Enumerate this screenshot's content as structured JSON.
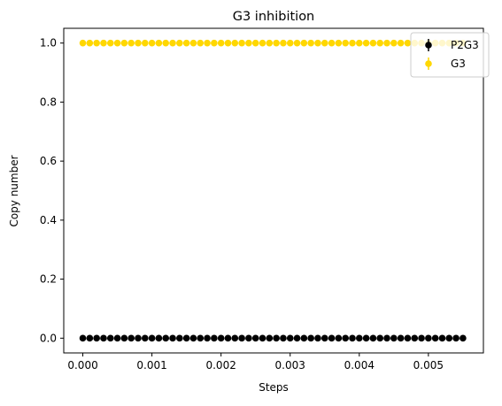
{
  "chart_data": {
    "type": "scatter",
    "title": "G3 inhibition",
    "xlabel": "Steps",
    "ylabel": "Copy number",
    "xlim": [
      -0.000276,
      0.005796
    ],
    "ylim": [
      -0.05,
      1.05
    ],
    "x_ticks": [
      0.0,
      0.001,
      0.002,
      0.003,
      0.004,
      0.005
    ],
    "x_tick_labels": [
      "0.000",
      "0.001",
      "0.002",
      "0.003",
      "0.004",
      "0.005"
    ],
    "y_ticks": [
      0.0,
      0.2,
      0.4,
      0.6,
      0.8,
      1.0
    ],
    "y_tick_labels": [
      "0.0",
      "0.2",
      "0.4",
      "0.6",
      "0.8",
      "1.0"
    ],
    "x": [
      0.0,
      0.0001,
      0.0002,
      0.0003,
      0.0004,
      0.0005,
      0.0006,
      0.0007,
      0.0008,
      0.0009,
      0.001,
      0.0011,
      0.0012,
      0.0013,
      0.0014,
      0.0015,
      0.0016,
      0.0017,
      0.0018,
      0.0019,
      0.002,
      0.0021,
      0.0022,
      0.0023,
      0.0024,
      0.0025,
      0.0026,
      0.0027,
      0.0028,
      0.0029,
      0.003,
      0.0031,
      0.0032,
      0.0033,
      0.0034,
      0.0035,
      0.0036,
      0.0037,
      0.0038,
      0.0039,
      0.004,
      0.0041,
      0.0042,
      0.0043,
      0.0044,
      0.0045,
      0.0046,
      0.0047,
      0.0048,
      0.0049,
      0.005,
      0.0051,
      0.0052,
      0.0053,
      0.0054,
      0.0055
    ],
    "series": [
      {
        "name": "P2G3",
        "color": "#000000",
        "value": 0.0
      },
      {
        "name": "G3",
        "color": "#ffd700",
        "value": 1.0
      }
    ],
    "legend_position": "upper right",
    "grid": false
  }
}
